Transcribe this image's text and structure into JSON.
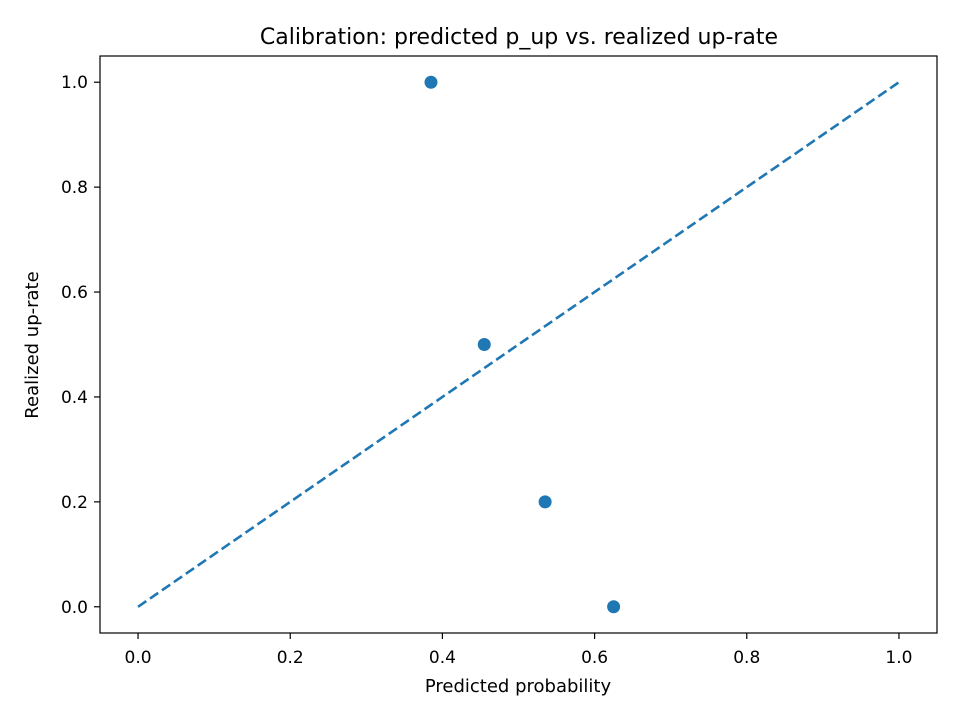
{
  "chart_data": {
    "type": "scatter",
    "title": "Calibration: predicted p_up vs. realized up-rate",
    "xlabel": "Predicted probability",
    "ylabel": "Realized up-rate",
    "xlim": [
      -0.05,
      1.05
    ],
    "ylim": [
      -0.05,
      1.05
    ],
    "x_ticks": [
      0.0,
      0.2,
      0.4,
      0.6,
      0.8,
      1.0
    ],
    "y_ticks": [
      0.0,
      0.2,
      0.4,
      0.6,
      0.8,
      1.0
    ],
    "x_tick_labels": [
      "0.0",
      "0.2",
      "0.4",
      "0.6",
      "0.8",
      "1.0"
    ],
    "y_tick_labels": [
      "0.0",
      "0.2",
      "0.4",
      "0.6",
      "0.8",
      "1.0"
    ],
    "grid": false,
    "series": [
      {
        "type": "scatter",
        "color": "#1f77b4",
        "points": [
          {
            "x": 0.385,
            "y": 1.0
          },
          {
            "x": 0.455,
            "y": 0.5
          },
          {
            "x": 0.535,
            "y": 0.2
          },
          {
            "x": 0.625,
            "y": 0.0
          }
        ]
      },
      {
        "type": "line",
        "style": "dashed",
        "color": "#1f77b4",
        "points": [
          {
            "x": 0.0,
            "y": 0.0
          },
          {
            "x": 1.0,
            "y": 1.0
          }
        ]
      }
    ]
  }
}
